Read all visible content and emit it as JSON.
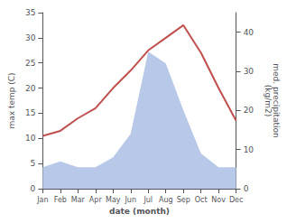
{
  "chart_data": {
    "type": "line",
    "categories": [
      "Jan",
      "Feb",
      "Mar",
      "Apr",
      "May",
      "Jun",
      "Jul",
      "Aug",
      "Sep",
      "Oct",
      "Nov",
      "Dec"
    ],
    "xlabel": "date (month)",
    "ylabel": "max temp (C)",
    "y2label": "med. precipitation\n(kg/m2)",
    "series": [
      {
        "type": "area",
        "axis": "y2",
        "color": "#b8c8e8",
        "values": [
          5.5,
          7.0,
          5.5,
          5.5,
          8.0,
          14.0,
          35.0,
          32.0,
          20.0,
          9.0,
          5.5,
          5.5
        ]
      },
      {
        "type": "line",
        "color": "#c0504d",
        "values": [
          10.5,
          11.5,
          14.0,
          16.0,
          20.0,
          23.5,
          27.5,
          30.0,
          32.5,
          27.0,
          20.0,
          13.5
        ]
      }
    ],
    "ylim": [
      0,
      35
    ],
    "yticks": [
      0,
      5,
      10,
      15,
      20,
      25,
      30,
      35
    ],
    "y2lim": [
      0,
      45
    ],
    "y2ticks": [
      0,
      10,
      20,
      30,
      40
    ],
    "grid": false
  }
}
